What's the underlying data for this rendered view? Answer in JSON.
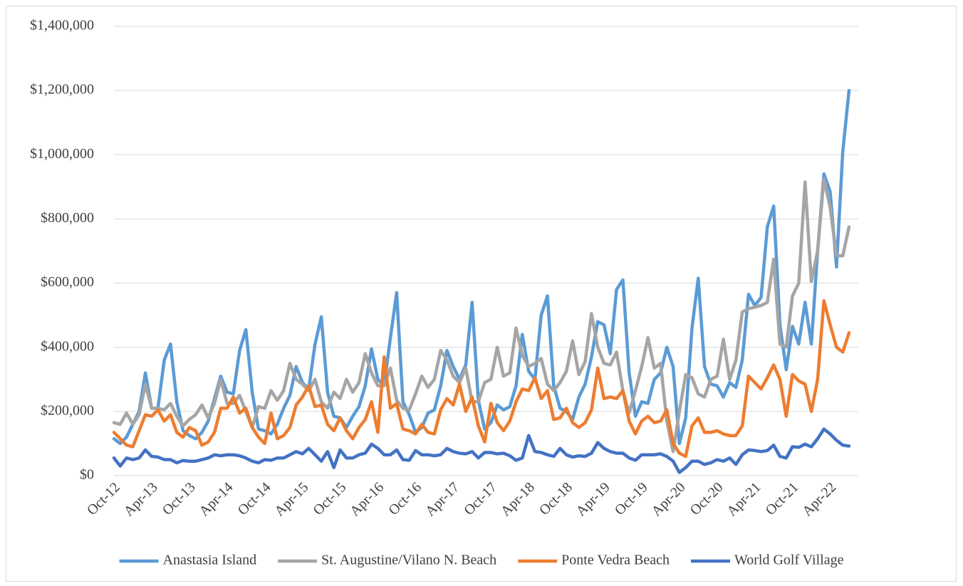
{
  "chart_data": {
    "type": "line",
    "categories": [
      "Oct-12",
      null,
      null,
      null,
      null,
      null,
      "Apr-13",
      null,
      null,
      null,
      null,
      null,
      "Oct-13",
      null,
      null,
      null,
      null,
      null,
      "Apr-14",
      null,
      null,
      null,
      null,
      null,
      "Oct-14",
      null,
      null,
      null,
      null,
      null,
      "Apr-15",
      null,
      null,
      null,
      null,
      null,
      "Oct-15",
      null,
      null,
      null,
      null,
      null,
      "Apr-16",
      null,
      null,
      null,
      null,
      null,
      "Oct-16",
      null,
      null,
      null,
      null,
      null,
      "Apr-17",
      null,
      null,
      null,
      null,
      null,
      "Oct-17",
      null,
      null,
      null,
      null,
      null,
      "Apr-18",
      null,
      null,
      null,
      null,
      null,
      "Oct-18",
      null,
      null,
      null,
      null,
      null,
      "Apr-19",
      null,
      null,
      null,
      null,
      null,
      "Oct-19",
      null,
      null,
      null,
      null,
      null,
      "Apr-20",
      null,
      null,
      null,
      null,
      null,
      "Oct-20",
      null,
      null,
      null,
      null,
      null,
      "Apr-21",
      null,
      null,
      null,
      null,
      null,
      "Oct-21",
      null,
      null,
      null,
      null,
      null,
      "Apr-22",
      null,
      null,
      null
    ],
    "series": [
      {
        "name": "Anastasia Island",
        "color": "#5B9BD5",
        "values": [
          115000,
          100000,
          120000,
          160000,
          200000,
          320000,
          210000,
          210000,
          360000,
          410000,
          230000,
          140000,
          125000,
          115000,
          135000,
          170000,
          240000,
          310000,
          260000,
          255000,
          390000,
          455000,
          260000,
          145000,
          140000,
          130000,
          160000,
          210000,
          250000,
          340000,
          290000,
          270000,
          410000,
          495000,
          260000,
          185000,
          180000,
          150000,
          185000,
          215000,
          280000,
          395000,
          300000,
          280000,
          430000,
          570000,
          230000,
          190000,
          135000,
          150000,
          195000,
          205000,
          280000,
          390000,
          340000,
          300000,
          345000,
          540000,
          235000,
          145000,
          165000,
          220000,
          205000,
          215000,
          280000,
          440000,
          325000,
          300000,
          500000,
          560000,
          280000,
          210000,
          200000,
          175000,
          245000,
          285000,
          370000,
          480000,
          470000,
          380000,
          580000,
          610000,
          320000,
          185000,
          230000,
          225000,
          300000,
          320000,
          400000,
          340000,
          100000,
          180000,
          460000,
          615000,
          340000,
          285000,
          280000,
          245000,
          290000,
          275000,
          360000,
          565000,
          530000,
          555000,
          775000,
          840000,
          470000,
          330000,
          465000,
          410000,
          540000,
          410000,
          700000,
          940000,
          885000,
          650000,
          1010000,
          1200000
        ]
      },
      {
        "name": "St. Augustine/Vilano N. Beach",
        "color": "#A5A5A5",
        "values": [
          165000,
          160000,
          195000,
          160000,
          190000,
          285000,
          210000,
          210000,
          205000,
          225000,
          185000,
          155000,
          175000,
          190000,
          220000,
          180000,
          225000,
          300000,
          225000,
          225000,
          250000,
          200000,
          150000,
          215000,
          210000,
          265000,
          235000,
          265000,
          350000,
          300000,
          285000,
          265000,
          300000,
          230000,
          210000,
          260000,
          240000,
          300000,
          260000,
          290000,
          380000,
          320000,
          280000,
          280000,
          335000,
          235000,
          210000,
          205000,
          255000,
          310000,
          275000,
          300000,
          390000,
          360000,
          310000,
          290000,
          335000,
          230000,
          230000,
          290000,
          300000,
          400000,
          310000,
          320000,
          460000,
          375000,
          340000,
          350000,
          365000,
          285000,
          265000,
          290000,
          325000,
          420000,
          315000,
          355000,
          505000,
          400000,
          350000,
          345000,
          385000,
          265000,
          195000,
          265000,
          340000,
          430000,
          335000,
          350000,
          170000,
          75000,
          200000,
          315000,
          305000,
          255000,
          245000,
          300000,
          310000,
          425000,
          300000,
          360000,
          510000,
          520000,
          525000,
          530000,
          540000,
          675000,
          410000,
          400000,
          560000,
          600000,
          915000,
          605000,
          700000,
          925000,
          835000,
          685000,
          685000,
          775000
        ]
      },
      {
        "name": "Ponte Vedra Beach",
        "color": "#ED7D31",
        "values": [
          135000,
          115000,
          95000,
          90000,
          140000,
          190000,
          185000,
          205000,
          170000,
          190000,
          135000,
          120000,
          150000,
          140000,
          95000,
          105000,
          135000,
          210000,
          210000,
          245000,
          195000,
          210000,
          150000,
          120000,
          100000,
          195000,
          115000,
          125000,
          150000,
          220000,
          245000,
          280000,
          215000,
          220000,
          160000,
          140000,
          180000,
          140000,
          115000,
          150000,
          175000,
          230000,
          135000,
          370000,
          210000,
          225000,
          145000,
          140000,
          130000,
          160000,
          135000,
          130000,
          205000,
          240000,
          220000,
          285000,
          200000,
          245000,
          155000,
          105000,
          225000,
          165000,
          140000,
          170000,
          230000,
          270000,
          265000,
          305000,
          240000,
          265000,
          175000,
          180000,
          210000,
          165000,
          150000,
          165000,
          205000,
          335000,
          240000,
          245000,
          240000,
          265000,
          170000,
          130000,
          170000,
          185000,
          165000,
          170000,
          205000,
          100000,
          70000,
          60000,
          155000,
          180000,
          135000,
          135000,
          140000,
          130000,
          125000,
          125000,
          155000,
          310000,
          290000,
          270000,
          305000,
          345000,
          300000,
          185000,
          315000,
          295000,
          285000,
          200000,
          300000,
          545000,
          470000,
          400000,
          385000,
          445000
        ]
      },
      {
        "name": "World Golf Village",
        "color": "#4472C4",
        "values": [
          55000,
          30000,
          55000,
          50000,
          55000,
          80000,
          60000,
          58000,
          50000,
          50000,
          40000,
          47000,
          45000,
          45000,
          50000,
          55000,
          65000,
          62000,
          65000,
          65000,
          62000,
          55000,
          45000,
          40000,
          50000,
          48000,
          55000,
          55000,
          65000,
          75000,
          68000,
          85000,
          65000,
          45000,
          75000,
          25000,
          80000,
          55000,
          55000,
          65000,
          70000,
          98000,
          85000,
          65000,
          65000,
          80000,
          50000,
          48000,
          78000,
          65000,
          65000,
          62000,
          65000,
          85000,
          75000,
          70000,
          68000,
          75000,
          55000,
          72000,
          72000,
          68000,
          70000,
          62000,
          48000,
          55000,
          125000,
          75000,
          72000,
          65000,
          60000,
          85000,
          65000,
          58000,
          62000,
          60000,
          70000,
          103000,
          85000,
          75000,
          70000,
          70000,
          55000,
          48000,
          65000,
          65000,
          65000,
          68000,
          60000,
          45000,
          10000,
          25000,
          45000,
          45000,
          35000,
          40000,
          50000,
          45000,
          55000,
          35000,
          65000,
          80000,
          78000,
          75000,
          78000,
          95000,
          60000,
          55000,
          90000,
          88000,
          98000,
          90000,
          115000,
          145000,
          130000,
          110000,
          95000,
          92000
        ]
      }
    ],
    "ylim": [
      0,
      1400000
    ],
    "yticks": [
      {
        "value": 0,
        "label": "$0"
      },
      {
        "value": 200000,
        "label": "$200,000"
      },
      {
        "value": 400000,
        "label": "$400,000"
      },
      {
        "value": 600000,
        "label": "$600,000"
      },
      {
        "value": 800000,
        "label": "$800,000"
      },
      {
        "value": 1000000,
        "label": "$1,000,000"
      },
      {
        "value": 1200000,
        "label": "$1,200,000"
      },
      {
        "value": 1400000,
        "label": "$1,400,000"
      }
    ],
    "grid": true,
    "legend": "bottom"
  }
}
